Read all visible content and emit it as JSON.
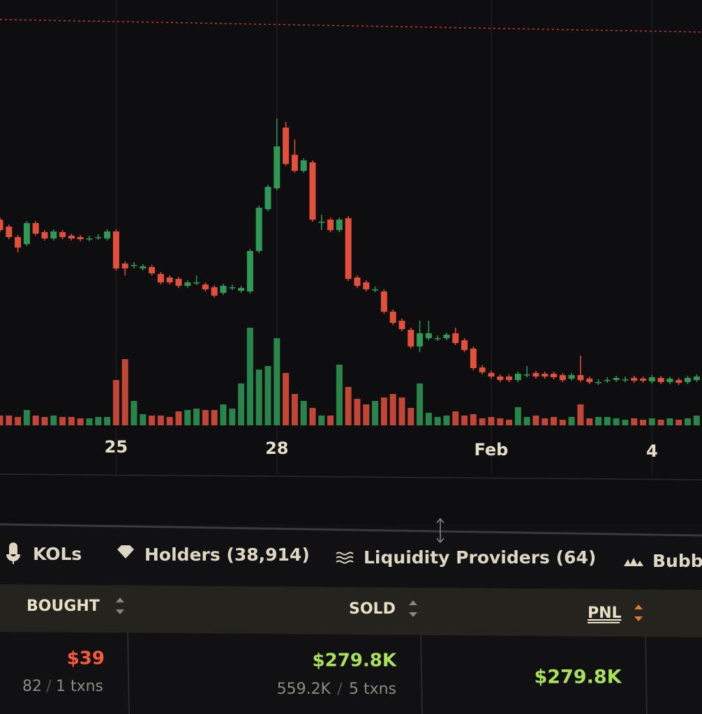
{
  "chart_data": {
    "type": "candlestick",
    "open": [
      325,
      315,
      300,
      290,
      320,
      307,
      298,
      307,
      302,
      300,
      298,
      300,
      298,
      308,
      262,
      260,
      255,
      257,
      247,
      242,
      240,
      230,
      235,
      232,
      228,
      220,
      228,
      223,
      222,
      280,
      340,
      370,
      457,
      418,
      395,
      407,
      322,
      325,
      310,
      327,
      242,
      235,
      225,
      222,
      193,
      180,
      167,
      143,
      155,
      155,
      155,
      162,
      152,
      140,
      113,
      105,
      100,
      100,
      95,
      103,
      105,
      104,
      104,
      102,
      97,
      102,
      97,
      92,
      95,
      95,
      96,
      98,
      97,
      93,
      98,
      92,
      95,
      92,
      95
    ],
    "high": [
      328,
      318,
      303,
      323,
      323,
      310,
      311,
      310,
      305,
      303,
      302,
      304,
      311,
      311,
      265,
      264,
      261,
      260,
      250,
      245,
      243,
      238,
      245,
      235,
      231,
      233,
      232,
      230,
      283,
      345,
      375,
      470,
      465,
      440,
      413,
      410,
      332,
      328,
      328,
      330,
      245,
      238,
      229,
      225,
      196,
      183,
      170,
      180,
      180,
      159,
      163,
      170,
      155,
      143,
      116,
      108,
      103,
      103,
      107,
      115,
      108,
      107,
      107,
      105,
      105,
      130,
      100,
      96,
      99,
      101,
      100,
      101,
      100,
      102,
      101,
      100,
      98,
      101,
      103
    ],
    "low": [
      307,
      297,
      278,
      287,
      302,
      295,
      295,
      297,
      295,
      294,
      294,
      296,
      295,
      252,
      245,
      255,
      252,
      245,
      232,
      232,
      227,
      227,
      231,
      222,
      213,
      217,
      224,
      220,
      219,
      277,
      337,
      367,
      402,
      392,
      392,
      322,
      310,
      307,
      307,
      237,
      227,
      222,
      221,
      190,
      174,
      165,
      140,
      135,
      152,
      151,
      152,
      145,
      135,
      109,
      103,
      97,
      92,
      92,
      92,
      99,
      97,
      97,
      96,
      92,
      94,
      92,
      89,
      88,
      91,
      92,
      92,
      91,
      91,
      90,
      89,
      89,
      88,
      89,
      92
    ],
    "close": [
      310,
      300,
      285,
      320,
      305,
      298,
      308,
      300,
      298,
      297,
      298,
      300,
      308,
      255,
      255,
      260,
      258,
      248,
      235,
      235,
      230,
      235,
      235,
      225,
      216,
      230,
      228,
      227,
      280,
      342,
      372,
      430,
      405,
      395,
      410,
      325,
      322,
      310,
      325,
      240,
      230,
      225,
      225,
      193,
      177,
      168,
      143,
      162,
      162,
      155,
      160,
      148,
      138,
      112,
      106,
      100,
      95,
      95,
      104,
      103,
      100,
      100,
      99,
      95,
      102,
      95,
      92,
      92,
      95,
      98,
      96,
      94,
      94,
      99,
      92,
      97,
      91,
      98,
      100
    ],
    "volume": [
      14,
      14,
      12,
      22,
      14,
      12,
      14,
      12,
      12,
      10,
      10,
      12,
      12,
      65,
      95,
      35,
      16,
      14,
      14,
      12,
      20,
      22,
      24,
      22,
      22,
      30,
      24,
      60,
      140,
      80,
      85,
      125,
      75,
      45,
      35,
      25,
      14,
      14,
      87,
      55,
      38,
      30,
      35,
      40,
      45,
      40,
      25,
      60,
      18,
      12,
      14,
      20,
      14,
      16,
      10,
      12,
      10,
      8,
      26,
      12,
      14,
      10,
      12,
      8,
      12,
      30,
      10,
      12,
      12,
      10,
      8,
      10,
      8,
      10,
      8,
      10,
      8,
      10,
      14
    ],
    "xlim": [
      0,
      78.6
    ],
    "ylim": [
      20,
      640
    ],
    "volume_lim": [
      0,
      150
    ],
    "xticks": [
      {
        "value": 13,
        "label": "25"
      },
      {
        "value": 31,
        "label": "28"
      },
      {
        "value": 55,
        "label": "Feb"
      },
      {
        "value": 73,
        "label": "4"
      }
    ],
    "up_color": "#2f9a55",
    "down_color": "#e2503c",
    "grid": true
  },
  "tabs": [
    "KOLs",
    "Holders (38,914)",
    "Liquidity Providers (64)",
    "Bubb"
  ],
  "table": {
    "headers": [
      "BOUGHT",
      "SOLD",
      "PNL"
    ],
    "rows": [
      [
        {
          "amount": "$39",
          "tokens": "82",
          "txns": "1 txns"
        },
        {
          "amount": "$279.8K",
          "tokens": "559.2K",
          "txns": "5 txns"
        },
        {
          "amount": "$279.8K"
        }
      ]
    ]
  }
}
